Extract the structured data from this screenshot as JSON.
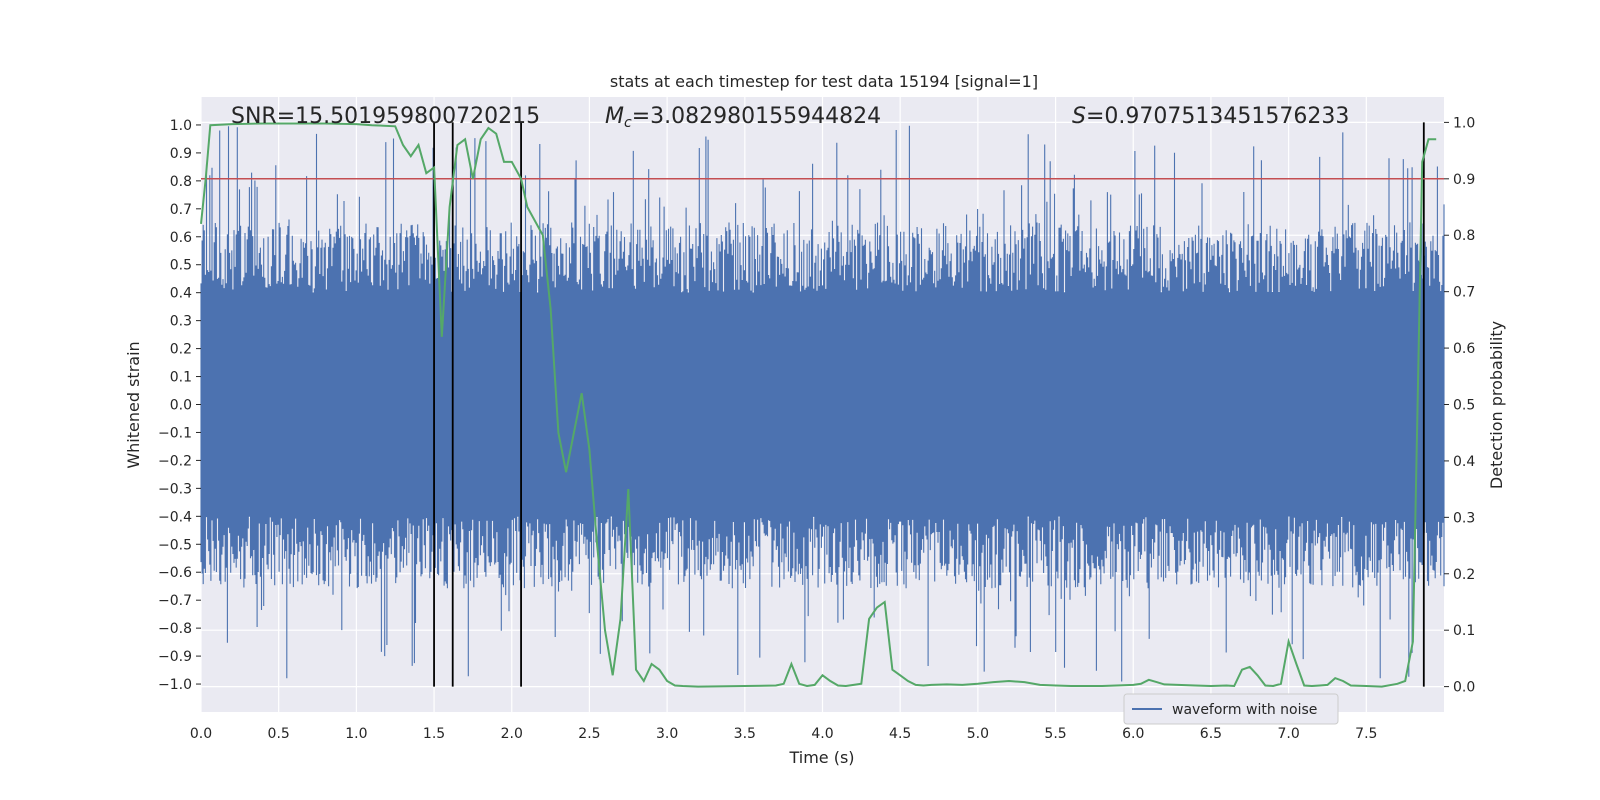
{
  "chart_data": {
    "type": "line",
    "title": "stats at each timestep for test data 15194 [signal=1]",
    "xlabel": "Time (s)",
    "ylabel": "Whitened strain",
    "y2label": "Detection probability",
    "xlim": [
      0.0,
      8.0
    ],
    "ylim": [
      -1.1,
      1.1
    ],
    "y2lim": [
      -0.045,
      1.045
    ],
    "xticks": [
      "0.0",
      "0.5",
      "1.0",
      "1.5",
      "2.0",
      "2.5",
      "3.0",
      "3.5",
      "4.0",
      "4.5",
      "5.0",
      "5.5",
      "6.0",
      "6.5",
      "7.0",
      "7.5"
    ],
    "yticks": [
      "1.0",
      "0.9",
      "0.8",
      "0.7",
      "0.6",
      "0.5",
      "0.4",
      "0.3",
      "0.2",
      "0.1",
      "0.0",
      "−0.1",
      "−0.2",
      "−0.3",
      "−0.4",
      "−0.5",
      "−0.6",
      "−0.7",
      "−0.8",
      "−0.9",
      "−1.0"
    ],
    "y2ticks": [
      "1.0",
      "0.9",
      "0.8",
      "0.7",
      "0.6",
      "0.5",
      "0.4",
      "0.3",
      "0.2",
      "0.1",
      "0.0"
    ],
    "annotations": {
      "snr": "SNR=15.501959800720215",
      "mc_symbol": "M",
      "mc_sub": "c",
      "mc_value": "=3.082980155944824",
      "s_symbol": "S",
      "s_value": "=0.9707513451576233"
    },
    "threshold": {
      "value": 0.9,
      "color": "#c44e52"
    },
    "vertical_lines": [
      1.5,
      1.62,
      2.06,
      7.87
    ],
    "series": [
      {
        "name": "waveform with noise",
        "color": "#4c72b0",
        "kind": "noise-envelope",
        "core_band": [
          -0.4,
          0.4
        ],
        "peak_range": [
          0.55,
          1.0
        ],
        "trough_range": [
          -0.55,
          -1.0
        ]
      },
      {
        "name": "detection probability",
        "color": "#55a868",
        "axis": "right",
        "x": [
          0.0,
          0.03,
          0.06,
          0.2,
          0.4,
          0.6,
          0.8,
          1.0,
          1.1,
          1.25,
          1.3,
          1.35,
          1.4,
          1.45,
          1.5,
          1.55,
          1.6,
          1.65,
          1.7,
          1.75,
          1.8,
          1.85,
          1.9,
          1.95,
          2.0,
          2.06,
          2.1,
          2.2,
          2.25,
          2.3,
          2.35,
          2.4,
          2.45,
          2.5,
          2.55,
          2.6,
          2.65,
          2.7,
          2.75,
          2.8,
          2.85,
          2.9,
          2.95,
          3.0,
          3.05,
          3.1,
          3.2,
          3.5,
          3.7,
          3.75,
          3.8,
          3.85,
          3.9,
          3.95,
          4.0,
          4.05,
          4.1,
          4.15,
          4.2,
          4.25,
          4.3,
          4.35,
          4.4,
          4.45,
          4.5,
          4.55,
          4.6,
          4.65,
          4.7,
          4.8,
          4.9,
          5.0,
          5.1,
          5.2,
          5.3,
          5.4,
          5.5,
          5.6,
          5.8,
          6.0,
          6.05,
          6.1,
          6.15,
          6.2,
          6.4,
          6.5,
          6.6,
          6.65,
          6.7,
          6.75,
          6.8,
          6.85,
          6.9,
          6.95,
          7.0,
          7.05,
          7.1,
          7.15,
          7.2,
          7.25,
          7.3,
          7.35,
          7.4,
          7.5,
          7.6,
          7.7,
          7.75,
          7.8,
          7.83,
          7.86,
          7.9,
          7.95
        ],
        "values": [
          0.82,
          0.9,
          0.995,
          0.997,
          0.998,
          0.998,
          0.998,
          0.997,
          0.995,
          0.993,
          0.96,
          0.94,
          0.96,
          0.91,
          0.92,
          0.62,
          0.85,
          0.96,
          0.97,
          0.9,
          0.97,
          0.99,
          0.98,
          0.93,
          0.93,
          0.9,
          0.85,
          0.8,
          0.67,
          0.45,
          0.38,
          0.45,
          0.52,
          0.42,
          0.25,
          0.1,
          0.02,
          0.12,
          0.35,
          0.03,
          0.01,
          0.04,
          0.03,
          0.01,
          0.002,
          0.001,
          0.0,
          0.001,
          0.002,
          0.005,
          0.04,
          0.005,
          0.001,
          0.003,
          0.02,
          0.01,
          0.002,
          0.001,
          0.003,
          0.005,
          0.12,
          0.14,
          0.15,
          0.03,
          0.02,
          0.01,
          0.003,
          0.002,
          0.003,
          0.004,
          0.003,
          0.005,
          0.008,
          0.01,
          0.008,
          0.003,
          0.002,
          0.001,
          0.001,
          0.003,
          0.005,
          0.012,
          0.008,
          0.004,
          0.002,
          0.001,
          0.002,
          0.001,
          0.03,
          0.035,
          0.02,
          0.002,
          0.001,
          0.005,
          0.08,
          0.04,
          0.002,
          0.001,
          0.002,
          0.003,
          0.015,
          0.01,
          0.002,
          0.001,
          0.0,
          0.005,
          0.01,
          0.08,
          0.5,
          0.93,
          0.97,
          0.97
        ]
      }
    ],
    "legend": {
      "label": "waveform with noise",
      "placement": "lower-right"
    }
  }
}
